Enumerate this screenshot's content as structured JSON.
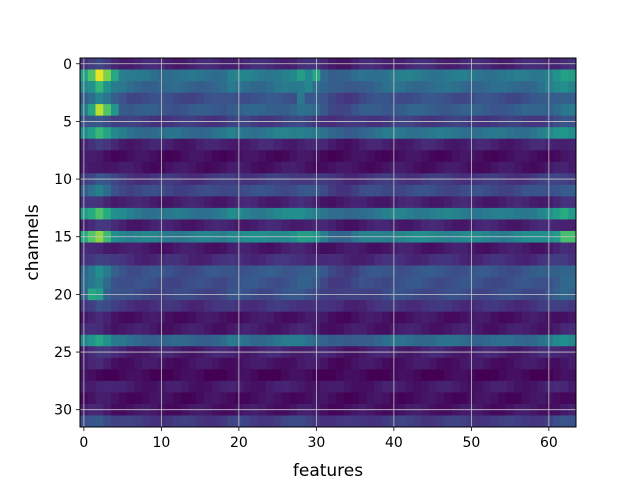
{
  "chart_data": {
    "type": "heatmap",
    "title": "",
    "xlabel": "features",
    "ylabel": "channels",
    "xlim": [
      -0.5,
      63.5
    ],
    "ylim": [
      31.5,
      -0.5
    ],
    "x_ticks": [
      0,
      10,
      20,
      30,
      40,
      50,
      60
    ],
    "y_ticks": [
      0,
      5,
      10,
      15,
      20,
      25,
      30
    ],
    "grid": true,
    "colormap": "viridis",
    "value_range": [
      0,
      1
    ],
    "n_rows": 32,
    "n_cols": 64,
    "row_profile": [
      0.12,
      0.46,
      0.4,
      0.28,
      0.34,
      0.2,
      0.44,
      0.1,
      0.04,
      0.06,
      0.18,
      0.26,
      0.1,
      0.48,
      0.1,
      0.52,
      0.08,
      0.14,
      0.3,
      0.28,
      0.26,
      0.16,
      0.06,
      0.08,
      0.4,
      0.1,
      0.06,
      0.02,
      0.08,
      0.04,
      0.06,
      0.2
    ],
    "col_profile_anchors": [
      [
        0,
        1.15
      ],
      [
        1,
        1.35
      ],
      [
        2,
        1.55
      ],
      [
        3,
        1.3
      ],
      [
        4,
        1.0
      ],
      [
        6,
        0.85
      ],
      [
        10,
        0.82
      ],
      [
        14,
        0.8
      ],
      [
        18,
        0.85
      ],
      [
        19,
        0.95
      ],
      [
        23,
        0.9
      ],
      [
        27,
        0.98
      ],
      [
        28,
        1.05
      ],
      [
        29,
        1.0
      ],
      [
        30,
        0.95
      ],
      [
        32,
        0.7
      ],
      [
        34,
        0.65
      ],
      [
        36,
        0.8
      ],
      [
        40,
        0.9
      ],
      [
        45,
        0.9
      ],
      [
        50,
        0.88
      ],
      [
        55,
        0.85
      ],
      [
        58,
        0.9
      ],
      [
        60,
        1.0
      ],
      [
        61,
        1.1
      ],
      [
        62,
        1.2
      ],
      [
        63,
        1.15
      ]
    ],
    "hotspots": [
      {
        "row": 1,
        "col": 2,
        "value": 0.97
      },
      {
        "row": 1,
        "col": 3,
        "value": 0.8
      },
      {
        "row": 1,
        "col": 1,
        "value": 0.72
      },
      {
        "row": 1,
        "col": 4,
        "value": 0.6
      },
      {
        "row": 2,
        "col": 2,
        "value": 0.66
      },
      {
        "row": 4,
        "col": 2,
        "value": 0.9
      },
      {
        "row": 4,
        "col": 3,
        "value": 0.72
      },
      {
        "row": 4,
        "col": 1,
        "value": 0.6
      },
      {
        "row": 4,
        "col": 4,
        "value": 0.52
      },
      {
        "row": 20,
        "col": 1,
        "value": 0.6
      },
      {
        "row": 20,
        "col": 2,
        "value": 0.56
      },
      {
        "row": 15,
        "col": 62,
        "value": 0.7
      },
      {
        "row": 15,
        "col": 63,
        "value": 0.7
      },
      {
        "row": 13,
        "col": 62,
        "value": 0.62
      },
      {
        "row": 1,
        "col": 30,
        "value": 0.6
      },
      {
        "row": 1,
        "col": 28,
        "value": 0.56
      },
      {
        "row": 2,
        "col": 29,
        "value": 0.46
      },
      {
        "row": 3,
        "col": 28,
        "value": 0.4
      }
    ]
  }
}
